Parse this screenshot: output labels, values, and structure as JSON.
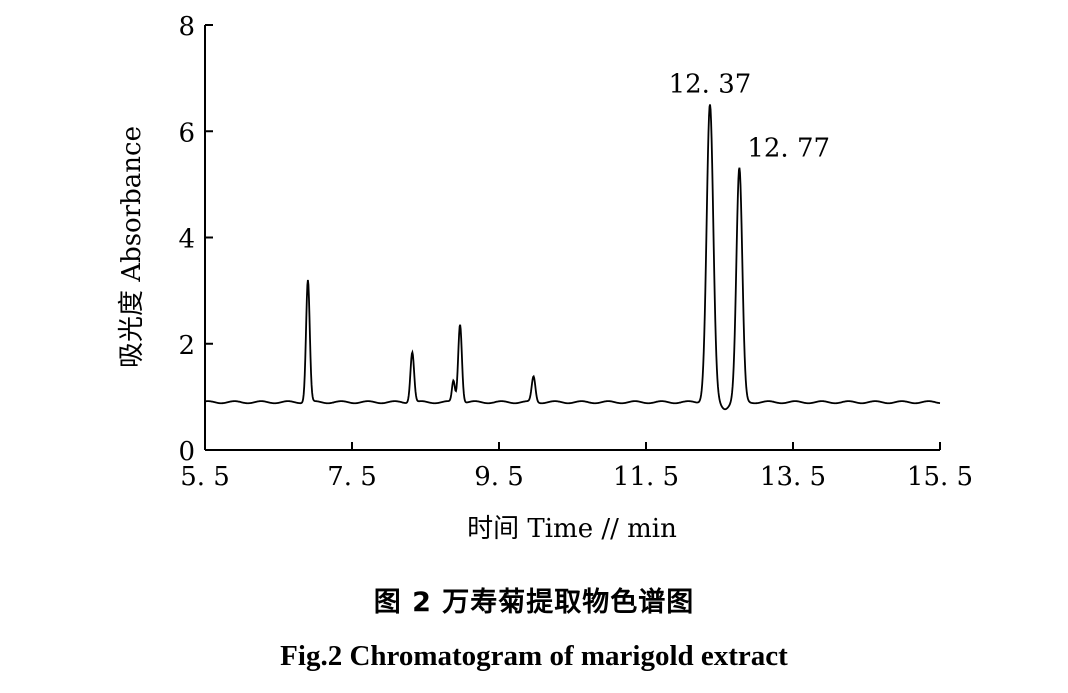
{
  "figure": {
    "caption_cn": "图 2   万寿菊提取物色谱图",
    "caption_en": "Fig.2    Chromatogram of marigold extract"
  },
  "chart_data": {
    "type": "line",
    "title": "",
    "xlabel": "时间 Time // min",
    "ylabel": "吸光度 Absorbance",
    "xlim": [
      5.5,
      15.5
    ],
    "ylim": [
      0,
      8
    ],
    "x_ticks": [
      "5. 5",
      "7. 5",
      "9. 5",
      "11. 5",
      "13. 5",
      "15. 5"
    ],
    "y_ticks": [
      "0",
      "2",
      "4",
      "6",
      "8"
    ],
    "grid": false,
    "baseline": 0.9,
    "line_color": "#000000",
    "peaks": [
      {
        "rt": 6.9,
        "height": 3.2,
        "width": 0.025
      },
      {
        "rt": 8.32,
        "height": 1.85,
        "width": 0.025
      },
      {
        "rt": 8.88,
        "height": 1.3,
        "width": 0.02
      },
      {
        "rt": 8.97,
        "height": 2.38,
        "width": 0.025
      },
      {
        "rt": 9.97,
        "height": 1.38,
        "width": 0.025
      },
      {
        "rt": 12.37,
        "height": 6.5,
        "width": 0.045
      },
      {
        "rt": 12.77,
        "height": 5.3,
        "width": 0.04
      }
    ],
    "annotations": [
      {
        "text": "12. 37",
        "x": 12.37,
        "y": 6.5
      },
      {
        "text": "12. 77",
        "x": 12.77,
        "y": 5.3
      }
    ]
  }
}
